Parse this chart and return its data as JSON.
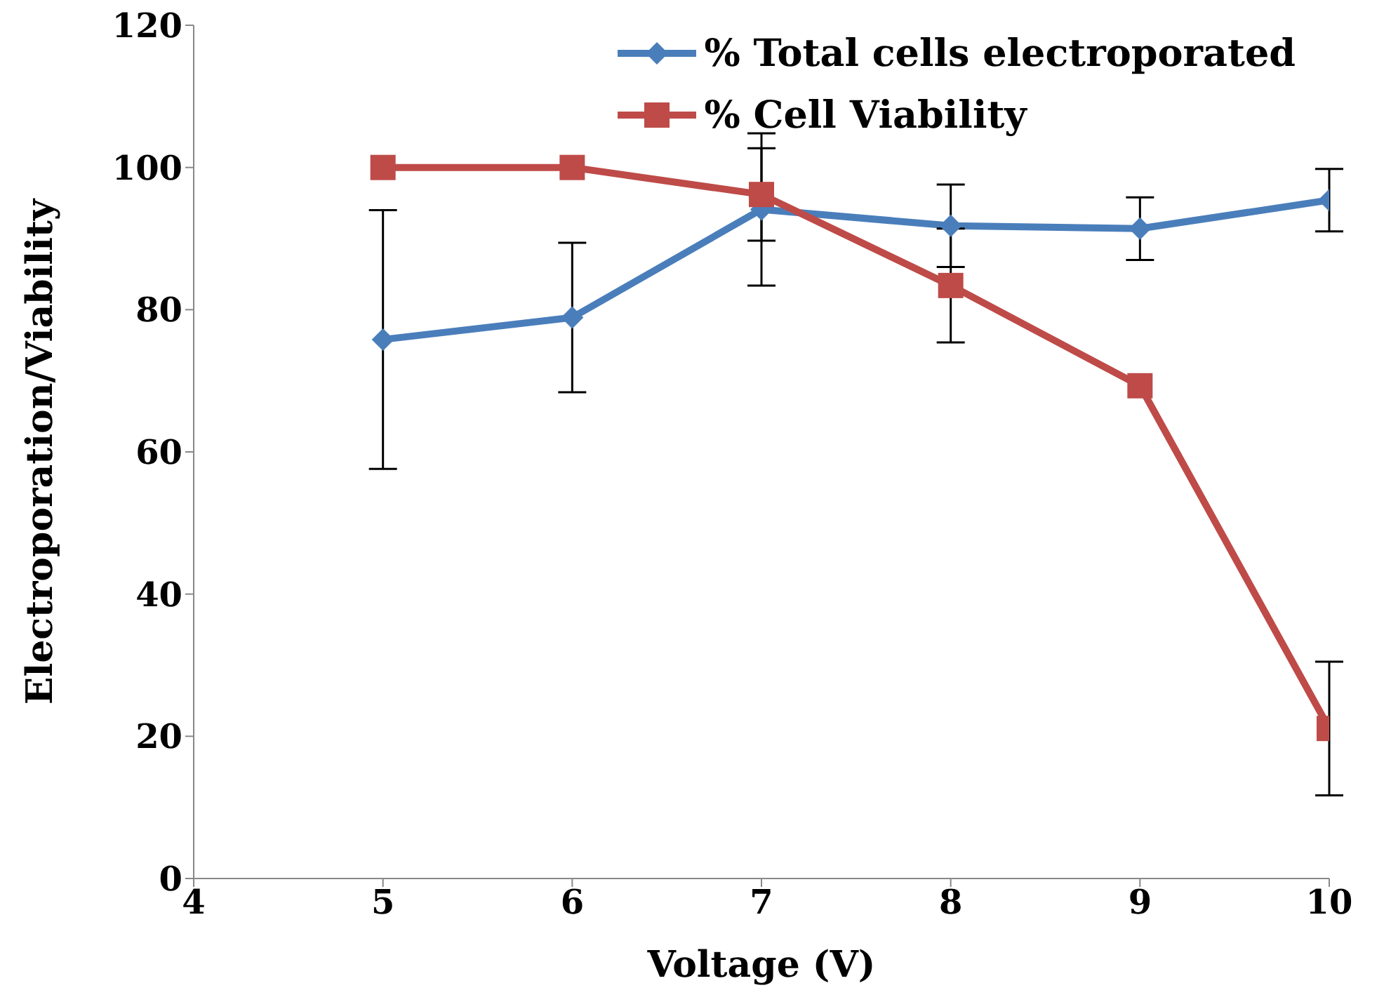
{
  "chart_data": {
    "type": "line",
    "xlabel": "Voltage (V)",
    "ylabel": "Electroporation/Viability",
    "x": [
      5,
      6,
      7,
      8,
      9,
      10
    ],
    "series": [
      {
        "name": "% Total cells electroporated",
        "color": "#4a7ebb",
        "marker": "diamond",
        "values": [
          75.8,
          78.9,
          94.1,
          91.8,
          91.4,
          95.4
        ],
        "errors": [
          18.2,
          10.5,
          10.7,
          5.8,
          4.4,
          4.4
        ]
      },
      {
        "name": "% Cell Viability",
        "color": "#be4b48",
        "marker": "square",
        "values": [
          100,
          100,
          96.2,
          83.4,
          69.3,
          21.1
        ],
        "errors": [
          null,
          null,
          6.5,
          8,
          null,
          9.4
        ]
      }
    ],
    "xlim": [
      4,
      10
    ],
    "xticks": [
      4,
      5,
      6,
      7,
      8,
      9,
      10
    ],
    "ylim": [
      0,
      120
    ],
    "yticks": [
      0,
      20,
      40,
      60,
      80,
      100,
      120
    ],
    "grid": false,
    "legend": "top right",
    "line_style": "solid"
  }
}
